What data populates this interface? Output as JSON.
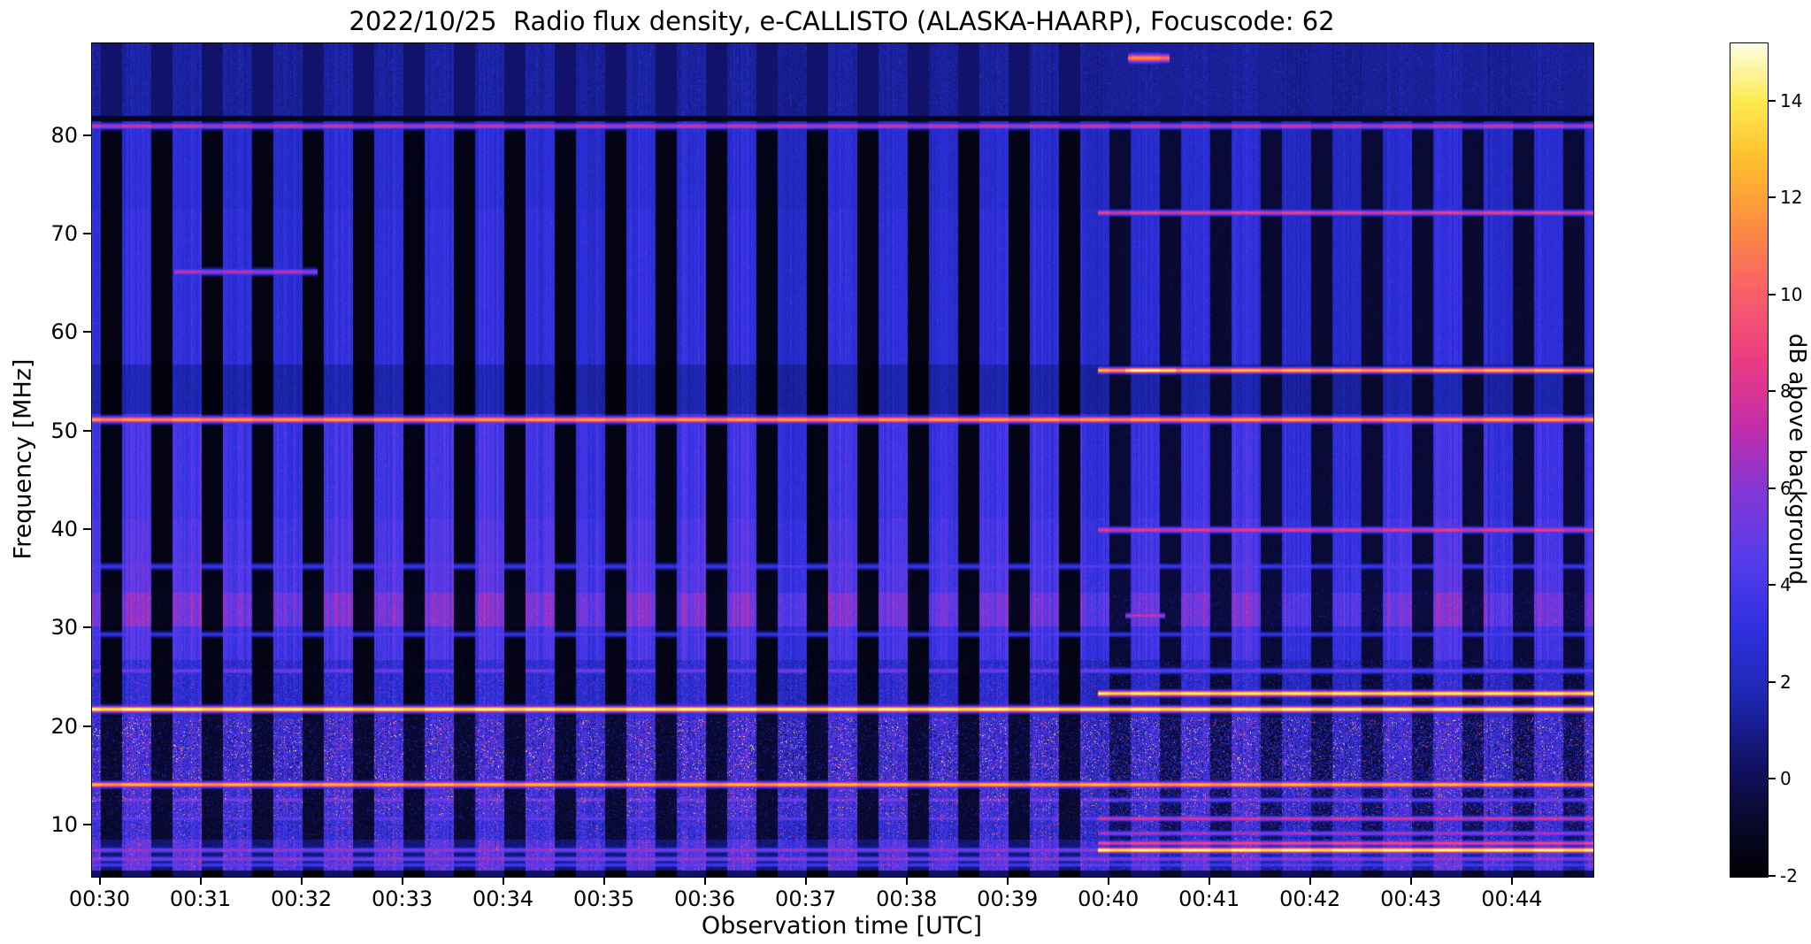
{
  "figure": {
    "title": "2022/10/25  Radio flux density, e-CALLISTO (ALASKA-HAARP), Focuscode: 62",
    "xlabel": "Observation time [UTC]",
    "ylabel": "Frequency [MHz]"
  },
  "chart_data": {
    "type": "heatmap",
    "title": "2022/10/25  Radio flux density, e-CALLISTO (ALASKA-HAARP), Focuscode: 62",
    "xlabel": "Observation time [UTC]",
    "ylabel": "Frequency [MHz]",
    "x_ticks": [
      "00:30",
      "00:31",
      "00:32",
      "00:33",
      "00:34",
      "00:35",
      "00:36",
      "00:37",
      "00:38",
      "00:39",
      "00:40",
      "00:41",
      "00:42",
      "00:43",
      "00:44"
    ],
    "x_axis": {
      "start_offset_s": 5,
      "tick_interval_s": 60,
      "duration_s": 893
    },
    "y_range_mhz": [
      4.8,
      89.4
    ],
    "y_ticks": [
      10,
      20,
      30,
      40,
      50,
      60,
      70,
      80
    ],
    "grid": false,
    "colorbar": {
      "label": "dB above background",
      "vmin": -2,
      "vmax": 15.2,
      "ticks": [
        -2,
        0,
        2,
        4,
        6,
        8,
        10,
        12,
        14
      ]
    },
    "colormap_stops": [
      [
        0.0,
        0,
        0,
        4
      ],
      [
        0.06,
        8,
        8,
        40
      ],
      [
        0.13,
        16,
        16,
        96
      ],
      [
        0.22,
        30,
        40,
        180
      ],
      [
        0.3,
        48,
        48,
        225
      ],
      [
        0.38,
        85,
        60,
        235
      ],
      [
        0.46,
        130,
        55,
        215
      ],
      [
        0.54,
        195,
        45,
        170
      ],
      [
        0.62,
        235,
        60,
        130
      ],
      [
        0.7,
        248,
        95,
        105
      ],
      [
        0.78,
        253,
        140,
        65
      ],
      [
        0.86,
        254,
        190,
        45
      ],
      [
        0.93,
        252,
        235,
        80
      ],
      [
        1.0,
        252,
        253,
        228
      ]
    ],
    "time_modulation": {
      "period_s": 30,
      "off_s": 13,
      "right_section_start_s": 598,
      "description": "Alternating dark (receiver off, ~-2 dB) and bright vertical columns every ~15 s; after 00:40 dark columns show residual signal and extra RFI lines appear"
    },
    "frequency_bands": [
      [
        81.6,
        89.4,
        1.3,
        0.4,
        0.8
      ],
      [
        72.6,
        81.6,
        2.6,
        -1.5,
        0.6
      ],
      [
        56.8,
        72.6,
        2.9,
        -1.6,
        0.6
      ],
      [
        51.8,
        56.8,
        1.6,
        -1.7,
        0.5
      ],
      [
        41.2,
        51.8,
        3.6,
        -1.5,
        0.7
      ],
      [
        36.8,
        41.2,
        4.0,
        -1.5,
        0.7
      ],
      [
        33.6,
        36.8,
        4.2,
        -1.4,
        0.8
      ],
      [
        30.2,
        33.6,
        5.3,
        -1.3,
        1.2
      ],
      [
        26.8,
        30.2,
        3.8,
        -1.5,
        0.8
      ],
      [
        22.4,
        26.8,
        2.6,
        -1.5,
        2.2
      ],
      [
        21.0,
        22.4,
        3.0,
        -1.0,
        1.5
      ],
      [
        14.6,
        21.0,
        3.2,
        -0.8,
        5.5
      ],
      [
        13.8,
        14.6,
        3.0,
        -0.5,
        2.0
      ],
      [
        10.9,
        13.8,
        3.4,
        -0.8,
        4.5
      ],
      [
        8.6,
        10.9,
        3.0,
        -0.8,
        3.5
      ],
      [
        5.4,
        8.6,
        4.2,
        0.5,
        2.5
      ],
      [
        4.8,
        5.4,
        0.3,
        -1.8,
        0.3
      ]
    ],
    "gaps_mhz": [
      [
        81.5,
        82.05
      ]
    ],
    "spectral_lines": [
      [
        81.0,
        0.3,
        8.0,
        0.0,
        1.0,
        "all"
      ],
      [
        87.9,
        0.45,
        11.5,
        0.69,
        0.718,
        "all"
      ],
      [
        72.2,
        0.28,
        9.0,
        0.67,
        1.0,
        "all"
      ],
      [
        66.2,
        0.3,
        7.5,
        0.055,
        0.15,
        "all"
      ],
      [
        56.2,
        0.3,
        13.0,
        0.67,
        1.0,
        "all"
      ],
      [
        56.2,
        0.3,
        15.2,
        0.688,
        0.722,
        "all"
      ],
      [
        51.2,
        0.33,
        12.3,
        0.0,
        1.0,
        "all"
      ],
      [
        40.0,
        0.3,
        8.8,
        0.67,
        1.0,
        "all"
      ],
      [
        36.3,
        0.28,
        4.6,
        0.0,
        1.0,
        "all"
      ],
      [
        31.3,
        0.25,
        8.0,
        0.688,
        0.715,
        "all"
      ],
      [
        29.4,
        0.25,
        4.4,
        0.0,
        1.0,
        "all"
      ],
      [
        25.7,
        0.3,
        5.5,
        0.0,
        1.0,
        "cols"
      ],
      [
        23.4,
        0.3,
        14.8,
        0.67,
        1.0,
        "all"
      ],
      [
        21.8,
        0.32,
        15.2,
        0.0,
        1.0,
        "all"
      ],
      [
        14.15,
        0.3,
        13.0,
        0.0,
        1.0,
        "all"
      ],
      [
        12.6,
        0.25,
        6.0,
        0.0,
        1.0,
        "cols"
      ],
      [
        10.7,
        0.25,
        8.5,
        0.67,
        1.0,
        "all"
      ],
      [
        10.7,
        0.25,
        5.0,
        0.0,
        0.67,
        "cols"
      ],
      [
        9.2,
        0.25,
        7.0,
        0.67,
        1.0,
        "all"
      ],
      [
        8.2,
        0.25,
        9.5,
        0.67,
        1.0,
        "all"
      ],
      [
        7.5,
        0.3,
        15.0,
        0.67,
        1.0,
        "all"
      ],
      [
        7.5,
        0.28,
        6.5,
        0.0,
        0.67,
        "all"
      ],
      [
        6.6,
        0.28,
        6.5,
        0.0,
        1.0,
        "all"
      ],
      [
        6.0,
        0.25,
        5.0,
        0.0,
        1.0,
        "all"
      ]
    ],
    "notes": "e-CALLISTO dynamic radio spectrum (spectrogram). Strong continuous RFI lines at ~51 MHz (orange), ~22 MHz (white), ~14 MHz (yellow), ~81 MHz (pink); broadcast-band speckle 11-21 MHz; extra lines at 72/56/40/23.4/10.7/8.2/7.5 MHz appearing after 00:40."
  }
}
